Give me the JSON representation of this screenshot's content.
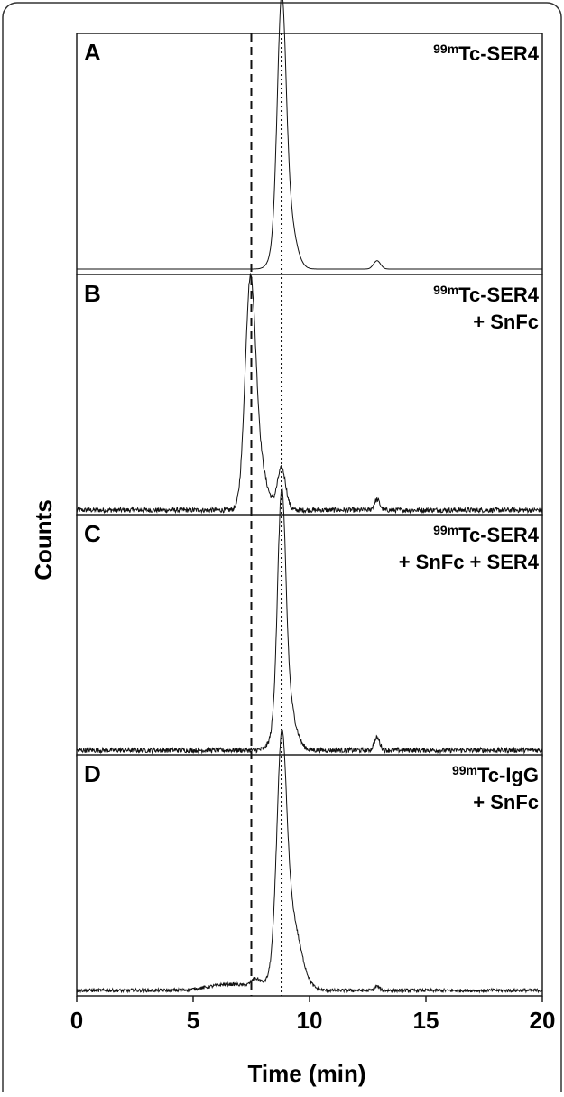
{
  "chart_data": {
    "type": "line",
    "xlabel": "Time (min)",
    "ylabel": "Counts",
    "xlim": [
      0,
      20
    ],
    "xticks": [
      0,
      5,
      10,
      15,
      20
    ],
    "reference_lines": [
      {
        "x": 7.5,
        "style": "dashed"
      },
      {
        "x": 8.8,
        "style": "dotted"
      }
    ],
    "ylim": [
      0,
      100
    ],
    "grid": false,
    "panels": [
      {
        "letter": "A",
        "label_sup": "99m",
        "label_lines": [
          "Tc-SER4"
        ],
        "noise": 0.0,
        "peaks": [
          {
            "time": 8.8,
            "height": 100,
            "width": 0.18
          },
          {
            "time": 8.95,
            "height": 35,
            "width": 0.35
          },
          {
            "time": 12.9,
            "height": 4,
            "width": 0.15
          }
        ]
      },
      {
        "letter": "B",
        "label_sup": "99m",
        "label_lines": [
          "Tc-SER4",
          "+ SnFc"
        ],
        "noise": 1.2,
        "peaks": [
          {
            "time": 7.45,
            "height": 95,
            "width": 0.22
          },
          {
            "time": 7.75,
            "height": 25,
            "width": 0.35
          },
          {
            "time": 8.8,
            "height": 20,
            "width": 0.18
          },
          {
            "time": 12.9,
            "height": 5,
            "width": 0.12
          }
        ]
      },
      {
        "letter": "C",
        "label_sup": "99m",
        "label_lines": [
          "Tc-SER4",
          "+ SnFc + SER4"
        ],
        "noise": 1.2,
        "peaks": [
          {
            "time": 8.8,
            "height": 98,
            "width": 0.17
          },
          {
            "time": 8.95,
            "height": 30,
            "width": 0.35
          },
          {
            "time": 12.9,
            "height": 6,
            "width": 0.12
          }
        ]
      },
      {
        "letter": "D",
        "label_sup": "99m",
        "label_lines": [
          "Tc-IgG",
          "+ SnFc"
        ],
        "noise": 0.8,
        "peaks": [
          {
            "time": 8.8,
            "height": 92,
            "width": 0.2
          },
          {
            "time": 9.1,
            "height": 40,
            "width": 0.45
          },
          {
            "time": 6.6,
            "height": 3,
            "width": 0.9
          },
          {
            "time": 7.7,
            "height": 4,
            "width": 0.2
          },
          {
            "time": 12.9,
            "height": 2,
            "width": 0.1
          }
        ]
      }
    ]
  }
}
